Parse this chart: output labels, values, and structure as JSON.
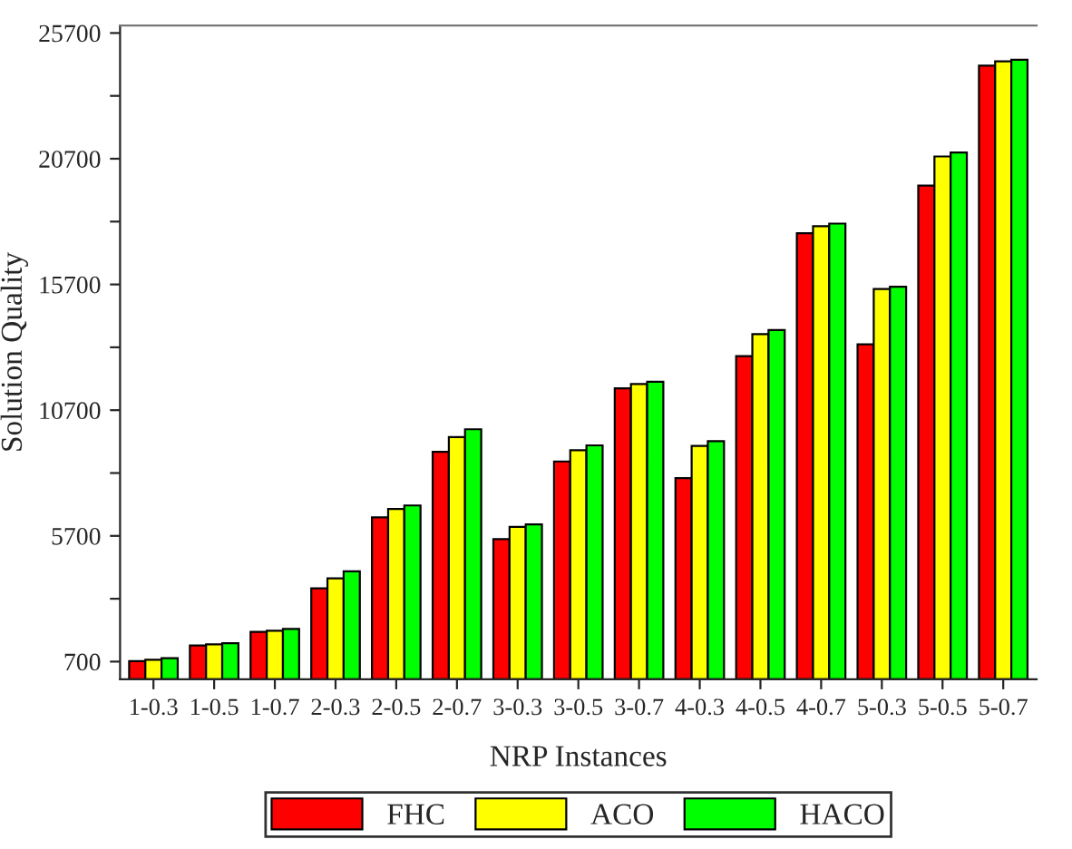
{
  "chart_data": {
    "type": "bar",
    "xlabel": "NRP Instances",
    "ylabel": "Solution Quality",
    "categories": [
      "1-0.3",
      "1-0.5",
      "1-0.7",
      "2-0.3",
      "2-0.5",
      "2-0.7",
      "3-0.3",
      "3-0.5",
      "3-0.7",
      "4-0.3",
      "4-0.5",
      "4-0.7",
      "5-0.3",
      "5-0.5",
      "5-0.7"
    ],
    "series": [
      {
        "name": "FHC",
        "color": "#ff0000",
        "values": [
          720,
          1340,
          1880,
          3610,
          6440,
          9040,
          5570,
          8660,
          11570,
          8000,
          12850,
          17740,
          13320,
          19630,
          24400
        ]
      },
      {
        "name": "ACO",
        "color": "#ffff00",
        "values": [
          770,
          1385,
          1930,
          4010,
          6770,
          9630,
          6060,
          9110,
          11740,
          9280,
          13720,
          18020,
          15520,
          20790,
          24570
        ]
      },
      {
        "name": "HACO",
        "color": "#00ff00",
        "values": [
          840,
          1430,
          2000,
          4290,
          6910,
          9940,
          6160,
          9300,
          11830,
          9470,
          13890,
          18120,
          15610,
          20950,
          24640
        ]
      }
    ],
    "ylim": [
      0,
      26000
    ],
    "yticks": [
      700,
      {
        "value": 3200,
        "label": null
      },
      5700,
      {
        "value": 8200,
        "label": null
      },
      10700,
      {
        "value": 13200,
        "label": null
      },
      15700,
      {
        "value": 18200,
        "label": null
      },
      20700,
      {
        "value": 23200,
        "label": null
      },
      25700
    ],
    "grid": false,
    "legend": "bottom"
  }
}
